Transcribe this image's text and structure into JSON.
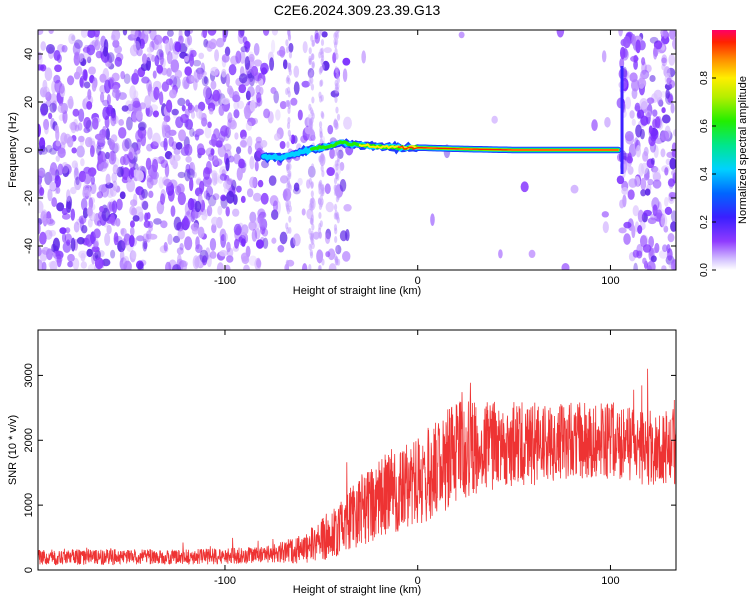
{
  "title": "C2E6.2024.309.23.39.G13",
  "chart_data": [
    {
      "type": "heatmap",
      "xlabel": "Height of straight line (km)",
      "ylabel": "Frequency (Hz)",
      "xlim": [
        -197,
        134
      ],
      "ylim": [
        -50,
        50
      ],
      "x_ticks": [
        -100,
        0,
        100
      ],
      "y_ticks": [
        -40,
        -20,
        0,
        20,
        40
      ],
      "colorbar": {
        "label": "Normalized spectral amplitude",
        "range": [
          0,
          1
        ],
        "ticks": [
          0.0,
          0.2,
          0.4,
          0.6,
          0.8
        ]
      },
      "ridge": [
        {
          "x": -80,
          "y": -3
        },
        {
          "x": -70,
          "y": -3
        },
        {
          "x": -62,
          "y": -1
        },
        {
          "x": -50,
          "y": 1
        },
        {
          "x": -40,
          "y": 3
        },
        {
          "x": -30,
          "y": 2
        },
        {
          "x": -20,
          "y": 1.5
        },
        {
          "x": -10,
          "y": 1
        },
        {
          "x": 0,
          "y": 1
        },
        {
          "x": 20,
          "y": 0.5
        },
        {
          "x": 50,
          "y": 0
        },
        {
          "x": 80,
          "y": 0
        },
        {
          "x": 104,
          "y": 0
        }
      ]
    },
    {
      "type": "line",
      "xlabel": "Height of straight line (km)",
      "ylabel": "SNR (10 * v/v)",
      "xlim": [
        -197,
        134
      ],
      "ylim": [
        0,
        3700
      ],
      "x_ticks": [
        -100,
        0,
        100
      ],
      "y_ticks": [
        0,
        1000,
        2000,
        3000
      ],
      "color": "#ee3333",
      "envelope": [
        {
          "x": -197,
          "mean": 200,
          "spread": 120
        },
        {
          "x": -120,
          "mean": 200,
          "spread": 120
        },
        {
          "x": -80,
          "mean": 230,
          "spread": 130
        },
        {
          "x": -60,
          "mean": 320,
          "spread": 220
        },
        {
          "x": -45,
          "mean": 550,
          "spread": 380
        },
        {
          "x": -30,
          "mean": 900,
          "spread": 550
        },
        {
          "x": -15,
          "mean": 1200,
          "spread": 650
        },
        {
          "x": 0,
          "mean": 1350,
          "spread": 700
        },
        {
          "x": 20,
          "mean": 1800,
          "spread": 800
        },
        {
          "x": 40,
          "mean": 1950,
          "spread": 700
        },
        {
          "x": 60,
          "mean": 1950,
          "spread": 650
        },
        {
          "x": 80,
          "mean": 2000,
          "spread": 600
        },
        {
          "x": 100,
          "mean": 2000,
          "spread": 600
        },
        {
          "x": 120,
          "mean": 1850,
          "spread": 550
        },
        {
          "x": 134,
          "mean": 1900,
          "spread": 600
        }
      ]
    }
  ]
}
